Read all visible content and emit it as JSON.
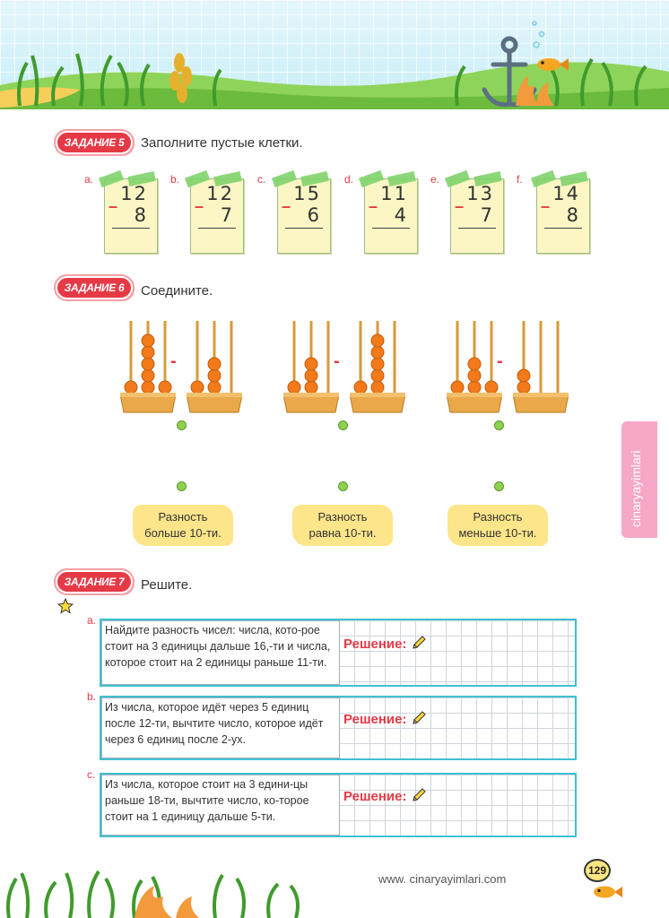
{
  "tasks": {
    "t5": {
      "badge": "ЗАДАНИЕ 5",
      "instruction": "Заполните пустые клетки."
    },
    "t6": {
      "badge": "ЗАДАНИЕ 6",
      "instruction": "Соедините."
    },
    "t7": {
      "badge": "ЗАДАНИЕ 7",
      "instruction": "Решите."
    }
  },
  "cards": [
    {
      "label": "a.",
      "top": "12",
      "bottom": "8"
    },
    {
      "label": "b.",
      "top": "12",
      "bottom": "7"
    },
    {
      "label": "c.",
      "top": "15",
      "bottom": "6"
    },
    {
      "label": "d.",
      "top": "11",
      "bottom": "4"
    },
    {
      "label": "e.",
      "top": "13",
      "bottom": "7"
    },
    {
      "label": "f.",
      "top": "14",
      "bottom": "8"
    }
  ],
  "abacus_sets": [
    {
      "left": [
        1,
        5,
        1
      ],
      "right": [
        1,
        3,
        0
      ]
    },
    {
      "left": [
        1,
        3,
        0
      ],
      "right": [
        1,
        5,
        0
      ]
    },
    {
      "left": [
        1,
        3,
        1
      ],
      "right": [
        2,
        0,
        0
      ]
    }
  ],
  "differences": [
    {
      "line1": "Разность",
      "line2": "больше 10-ти."
    },
    {
      "line1": "Разность",
      "line2": "равна 10-ти."
    },
    {
      "line1": "Разность",
      "line2": "меньше 10-ти."
    }
  ],
  "problems": [
    {
      "label": "a.",
      "text": "Найдите разность чисел: числа, кото-рое стоит на 3 единицы дальше 16,-ти и числа, которое стоит на 2 единицы раньше 11-ти."
    },
    {
      "label": "b.",
      "text": "Из числа, которое идёт через 5 единиц после 12-ти, вычтите число, которое идёт через 6 единиц после 2-ух."
    },
    {
      "label": "c.",
      "text": "Из числа, которое стоит на 3 едини-цы раньше 18-ти, вычтите число, ко-торое стоит на 1 единицу дальше 5-ти."
    }
  ],
  "solution_label": "Решение:",
  "side_tab": "cinaryayimlari",
  "footer": {
    "website": "www. cinaryayimlari.com",
    "page_number": "129"
  },
  "colors": {
    "accent_red": "#e63946",
    "box_border": "#3fc0d2",
    "card_bg": "#fbf6c4",
    "label_bg": "#fde58a",
    "side_tab": "#f6a8c6"
  }
}
